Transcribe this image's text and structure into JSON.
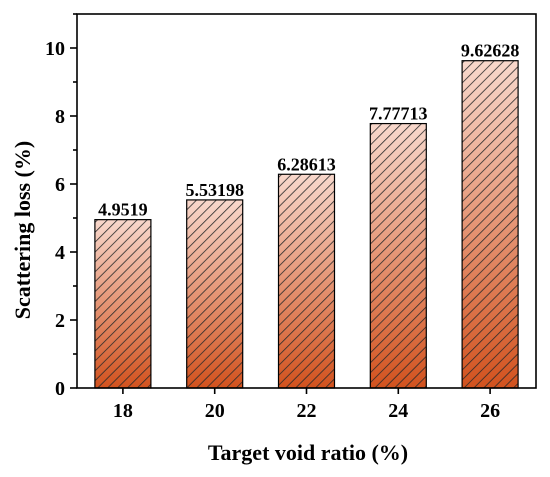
{
  "chart_data": {
    "type": "bar",
    "categories": [
      "18",
      "20",
      "22",
      "24",
      "26"
    ],
    "values": [
      4.9519,
      5.53198,
      6.28613,
      7.77713,
      9.62628
    ],
    "data_labels": [
      "4.9519",
      "5.53198",
      "6.28613",
      "7.77713",
      "9.62628"
    ],
    "xlabel": "Target void ratio (%)",
    "ylabel": "Scattering loss (%)",
    "ylim": [
      0,
      11
    ],
    "yticks": [
      "0",
      "2",
      "4",
      "6",
      "8",
      "10"
    ],
    "grid": false,
    "legend": "none",
    "bar_fill": "hatched gradient",
    "colors": {
      "bar_top": "#f8d8cc",
      "bar_bottom": "#d2521e",
      "hatch": "#2a2a2a",
      "axis": "#000000"
    }
  }
}
